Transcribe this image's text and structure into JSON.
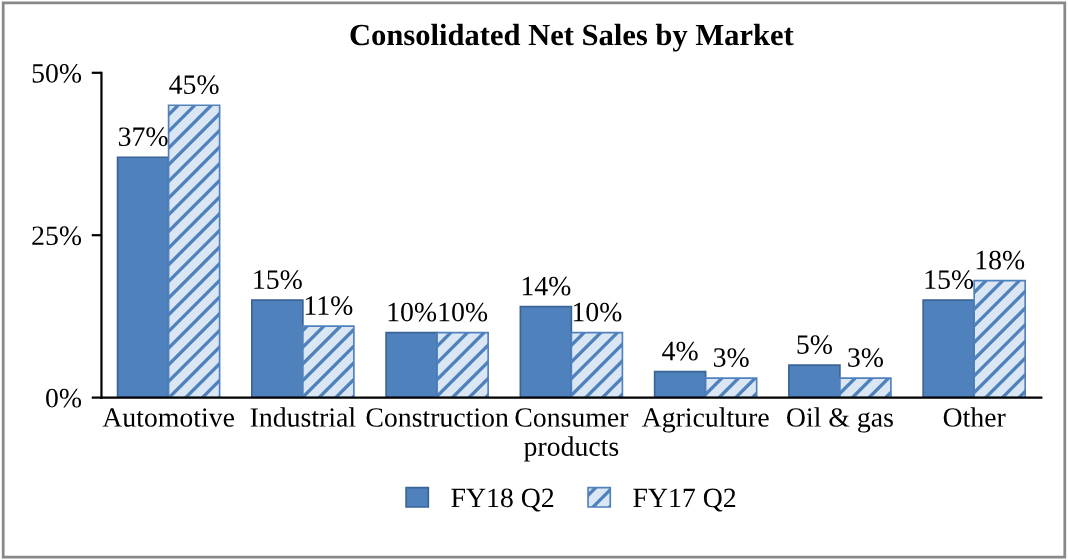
{
  "chart_data": {
    "type": "bar",
    "title": "Consolidated Net Sales by Market",
    "categories": [
      "Automotive",
      "Industrial",
      "Construction",
      "Consumer\nproducts",
      "Agriculture",
      "Oil & gas",
      "Other"
    ],
    "series": [
      {
        "name": "FY18 Q2",
        "color": "#4f81bd",
        "values": [
          37,
          15,
          10,
          14,
          4,
          5,
          15
        ],
        "value_labels": [
          "37%",
          "15%",
          "10%",
          "14%",
          "4%",
          "5%",
          "15%"
        ]
      },
      {
        "name": "FY17 Q2",
        "color": "#4f81bd",
        "values": [
          45,
          11,
          10,
          10,
          3,
          3,
          18
        ],
        "value_labels": [
          "45%",
          "11%",
          "10%",
          "10%",
          "3%",
          "3%",
          "18%"
        ]
      }
    ],
    "ylim": [
      0,
      50
    ],
    "yticks": [
      {
        "value": 0,
        "label": "0%"
      },
      {
        "value": 25,
        "label": "25%"
      },
      {
        "value": 50,
        "label": "50%"
      }
    ],
    "grid": false,
    "legend": "bottom"
  }
}
